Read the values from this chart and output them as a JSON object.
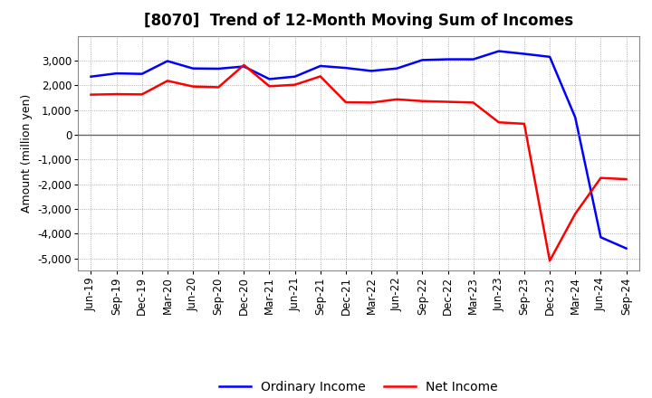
{
  "title": "[8070]  Trend of 12-Month Moving Sum of Incomes",
  "ylabel": "Amount (million yen)",
  "background_color": "#ffffff",
  "plot_background_color": "#ffffff",
  "grid_color": "#999999",
  "title_fontsize": 12,
  "label_fontsize": 9,
  "tick_fontsize": 8.5,
  "ordinary_income_color": "#0000ff",
  "net_income_color": "#ff0000",
  "ordinary_income_linewidth": 1.8,
  "net_income_linewidth": 1.8,
  "xlabels": [
    "Jun-19",
    "Sep-19",
    "Dec-19",
    "Mar-20",
    "Jun-20",
    "Sep-20",
    "Dec-20",
    "Mar-21",
    "Jun-21",
    "Sep-21",
    "Dec-21",
    "Mar-22",
    "Jun-22",
    "Sep-22",
    "Dec-22",
    "Mar-23",
    "Jun-23",
    "Sep-23",
    "Dec-23",
    "Mar-24",
    "Jun-24",
    "Sep-24"
  ],
  "ordinary_income": [
    2350,
    2480,
    2460,
    2980,
    2680,
    2670,
    2760,
    2250,
    2350,
    2780,
    2700,
    2580,
    2680,
    3020,
    3050,
    3050,
    3380,
    3270,
    3150,
    700,
    -4150,
    -4600
  ],
  "net_income": [
    1620,
    1640,
    1630,
    2180,
    1950,
    1920,
    2820,
    1960,
    2020,
    2360,
    1310,
    1300,
    1430,
    1360,
    1330,
    1300,
    500,
    440,
    -5100,
    -3200,
    -1750,
    -1800
  ],
  "ylim": [
    -5500,
    4000
  ],
  "yticks": [
    -5000,
    -4000,
    -3000,
    -2000,
    -1000,
    0,
    1000,
    2000,
    3000
  ],
  "legend_ordinary": "Ordinary Income",
  "legend_net": "Net Income"
}
